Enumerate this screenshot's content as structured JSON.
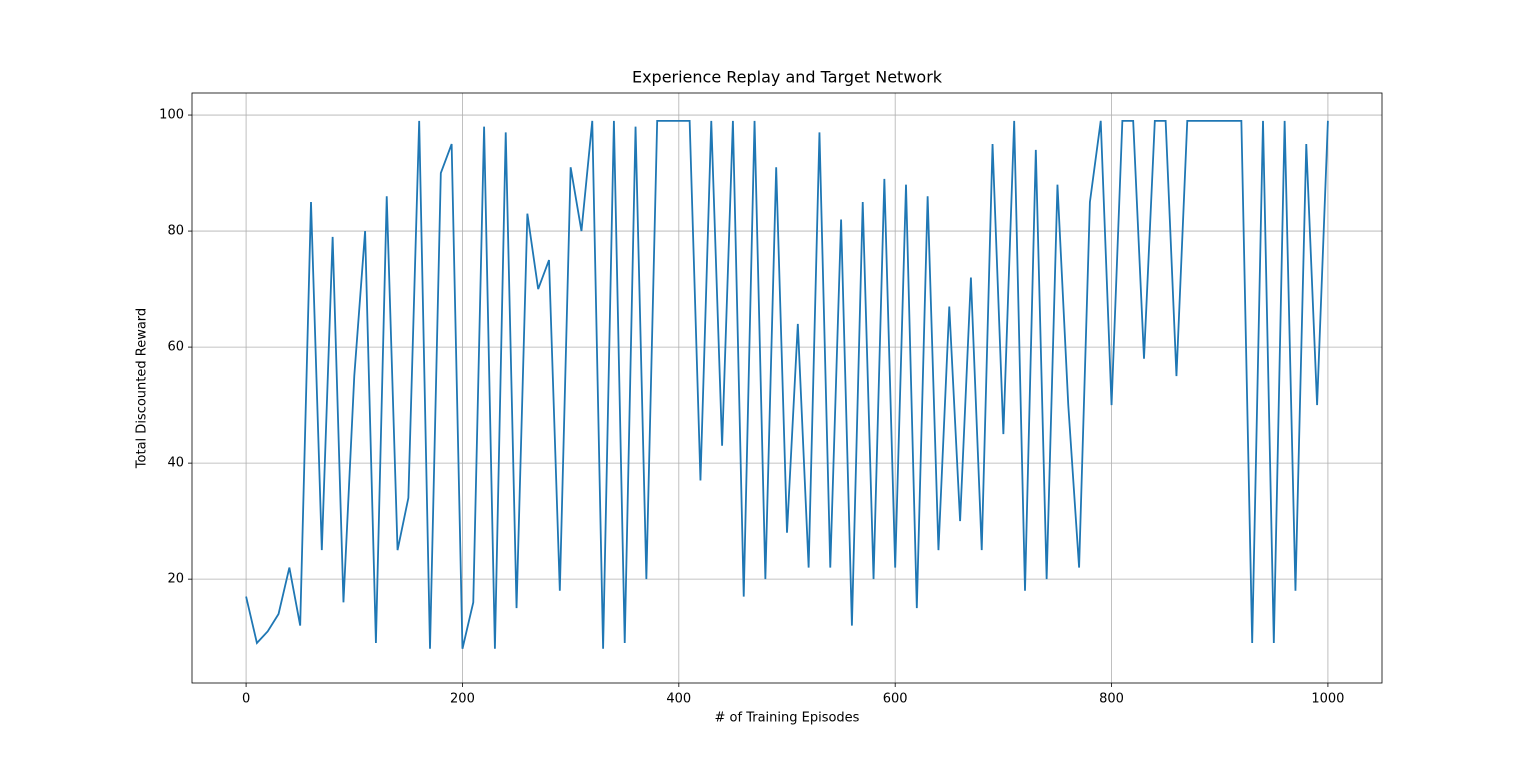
{
  "chart_data": {
    "type": "line",
    "title": "Experience Replay and Target Network",
    "xlabel": "# of Training Episodes",
    "ylabel": "Total Discounted Reward",
    "color": "#1f77b4",
    "grid": true,
    "xlim": [
      -50,
      1050
    ],
    "ylim": [
      2.1,
      103.8
    ],
    "xticks": [
      0,
      200,
      400,
      600,
      800,
      1000
    ],
    "yticks": [
      20,
      40,
      60,
      80,
      100
    ],
    "x": [
      0,
      10,
      20,
      30,
      40,
      50,
      60,
      70,
      80,
      90,
      100,
      110,
      120,
      130,
      140,
      150,
      160,
      170,
      180,
      190,
      200,
      210,
      220,
      230,
      240,
      250,
      260,
      270,
      280,
      290,
      300,
      310,
      320,
      330,
      340,
      350,
      360,
      370,
      380,
      390,
      400,
      410,
      420,
      430,
      440,
      450,
      460,
      470,
      480,
      490,
      500,
      510,
      520,
      530,
      540,
      550,
      560,
      570,
      580,
      590,
      600,
      610,
      620,
      630,
      640,
      650,
      660,
      670,
      680,
      690,
      700,
      710,
      720,
      730,
      740,
      750,
      760,
      770,
      780,
      790,
      800,
      810,
      820,
      830,
      840,
      850,
      860,
      870,
      880,
      890,
      900,
      910,
      920,
      930,
      940,
      950,
      960,
      970,
      980,
      990,
      1000
    ],
    "values": [
      17,
      9,
      11,
      14,
      22,
      12,
      85,
      25,
      79,
      16,
      55,
      80,
      9,
      86,
      25,
      34,
      99,
      8,
      90,
      95,
      8,
      16,
      98,
      8,
      97,
      15,
      83,
      70,
      75,
      18,
      91,
      80,
      99,
      8,
      99,
      9,
      98,
      20,
      99,
      99,
      99,
      99,
      37,
      99,
      43,
      99,
      17,
      99,
      20,
      91,
      28,
      64,
      22,
      97,
      22,
      82,
      12,
      85,
      20,
      89,
      22,
      88,
      15,
      86,
      25,
      67,
      30,
      72,
      25,
      95,
      45,
      99,
      18,
      94,
      20,
      88,
      50,
      22,
      85,
      99,
      50,
      99,
      99,
      58,
      99,
      99,
      55,
      99,
      99,
      99,
      99,
      99,
      99,
      9,
      99,
      9,
      99,
      18,
      95,
      50,
      99
    ]
  }
}
